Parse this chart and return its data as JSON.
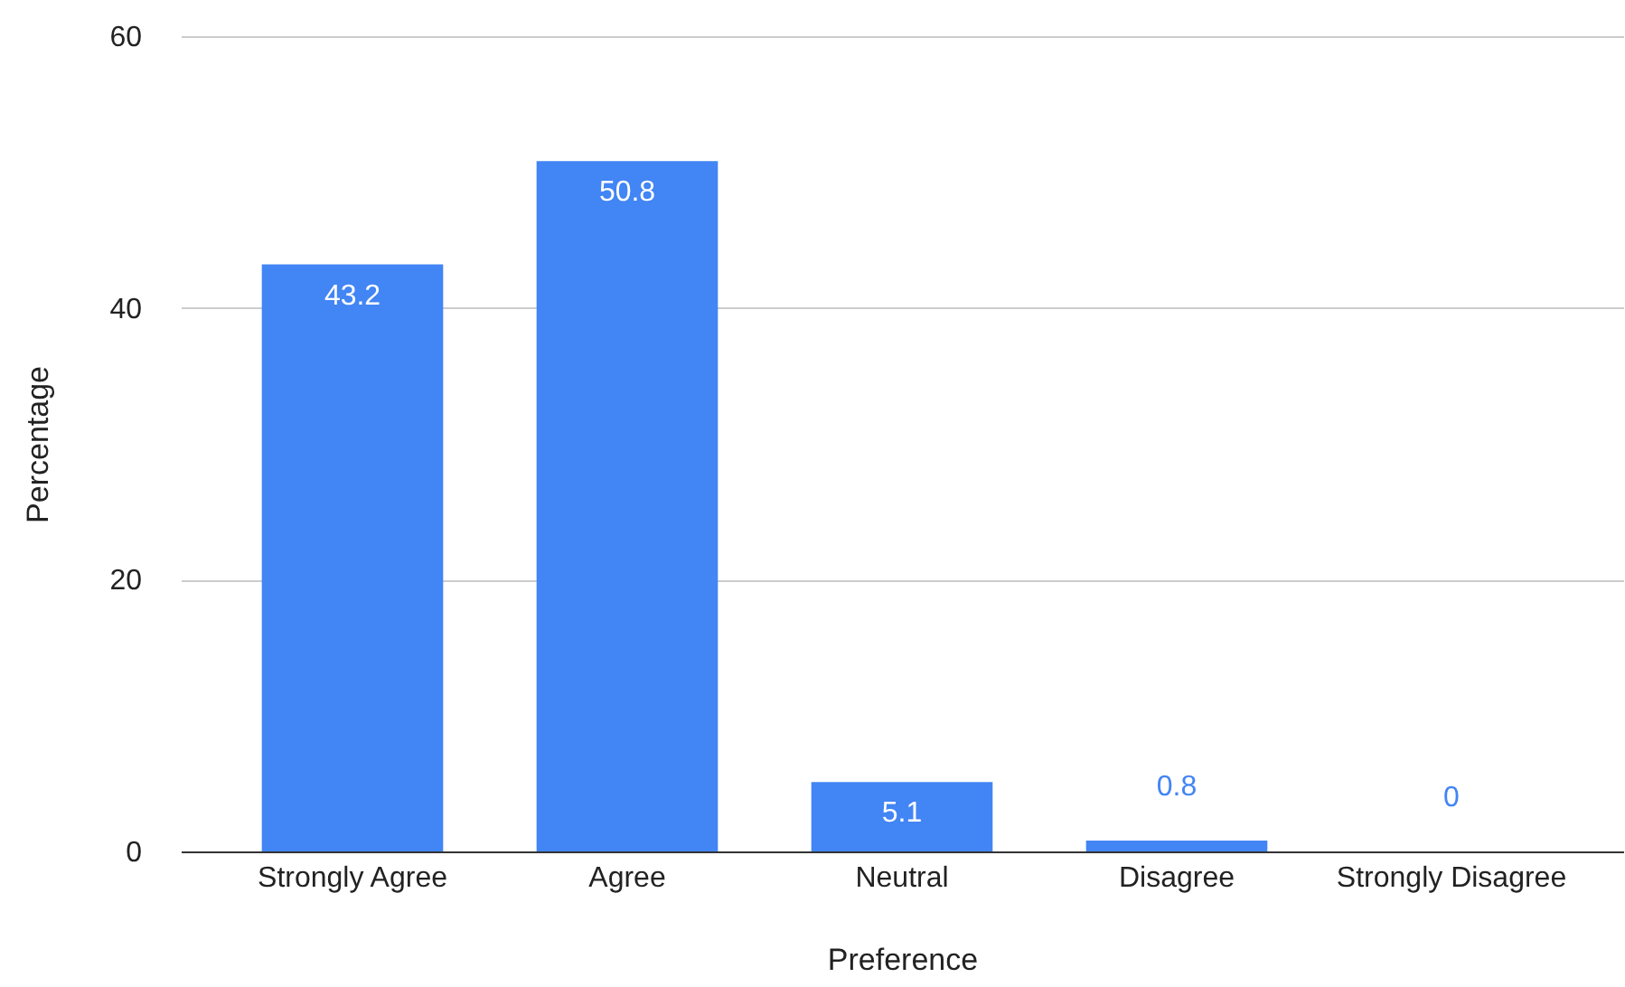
{
  "chart_data": {
    "type": "bar",
    "xlabel": "Preference",
    "ylabel": "Percentage",
    "categories": [
      "Strongly Agree",
      "Agree",
      "Neutral",
      "Disagree",
      "Strongly Disagree"
    ],
    "values": [
      43.2,
      50.8,
      5.1,
      0.8,
      0
    ],
    "color": "#4285f4",
    "ylim": [
      0,
      60
    ],
    "yticks": [
      0,
      20,
      40,
      60
    ],
    "grid": "y",
    "data_labels": true
  }
}
